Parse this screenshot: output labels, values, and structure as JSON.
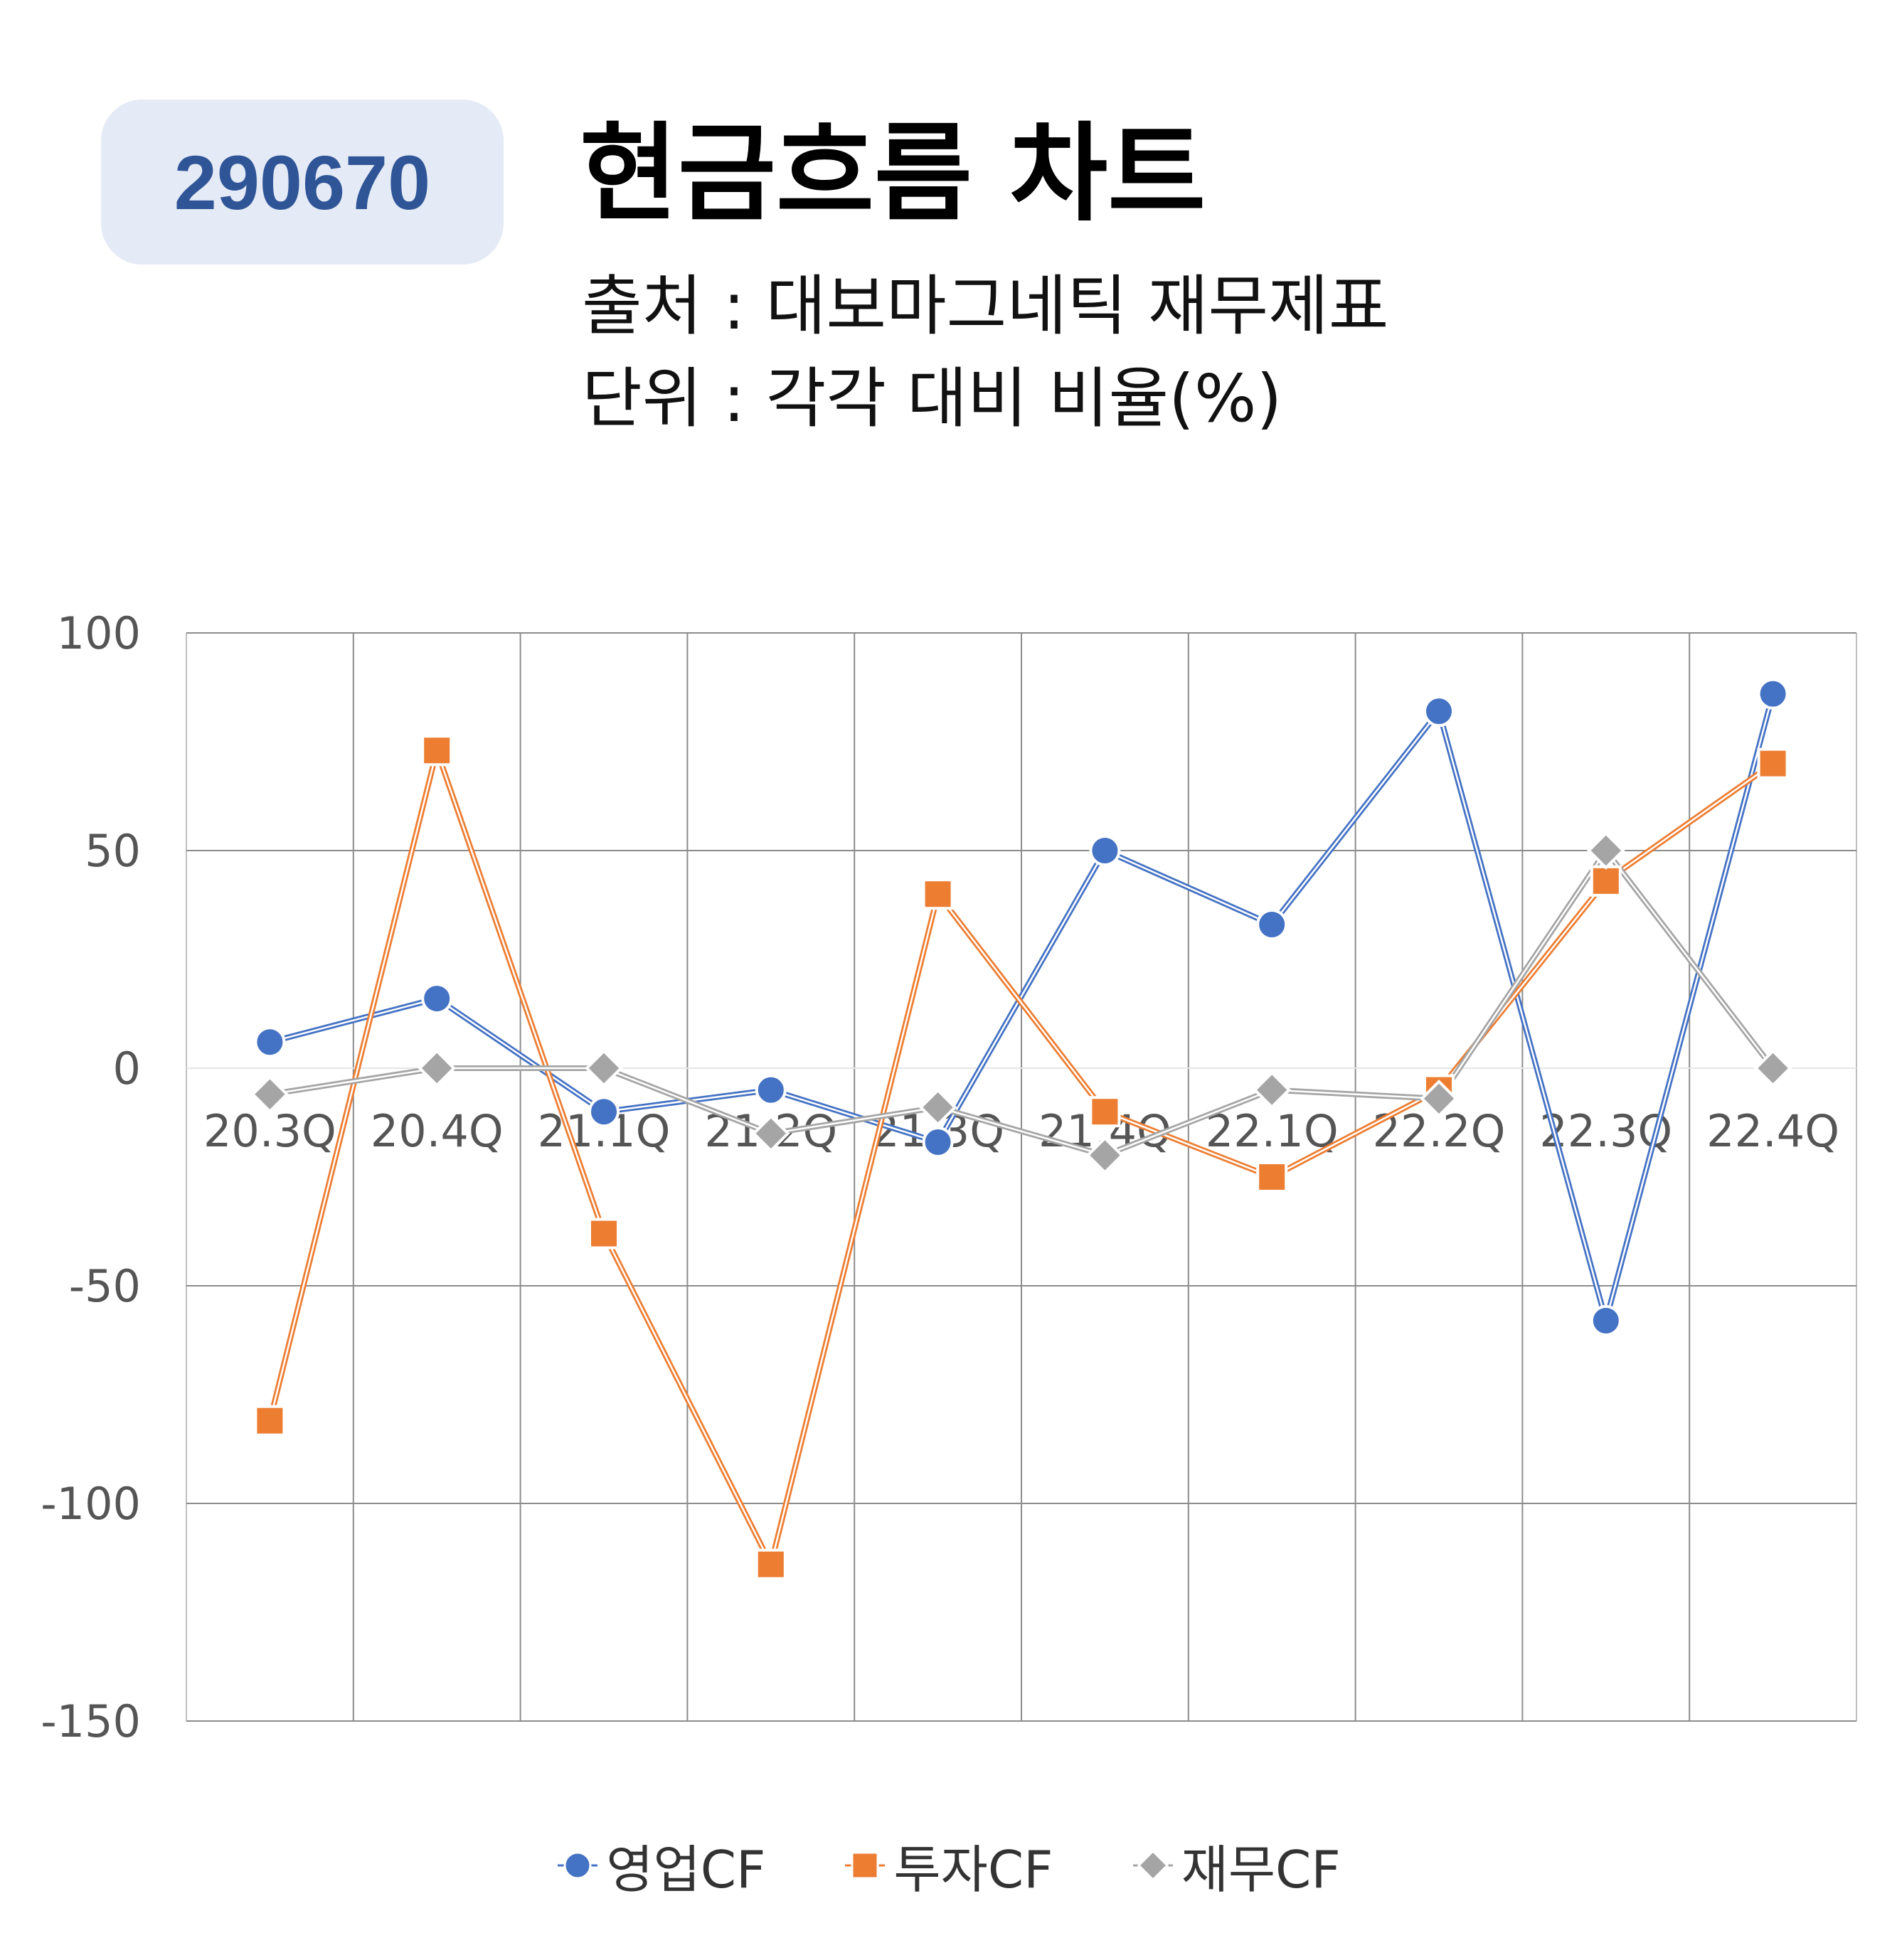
{
  "header": {
    "code": "290670",
    "title": "현금흐름 차트",
    "source_line": "출처 : 대보마그네틱 재무제표",
    "unit_line": "단위 : 각각 대비 비율(%)"
  },
  "colors": {
    "operating": "#4472c4",
    "investing": "#ed7d31",
    "financing": "#a5a5a5",
    "badge_bg": "#e4eaf6",
    "badge_text": "#2f5597"
  },
  "chart_data": {
    "type": "line",
    "categories": [
      "20.3Q",
      "20.4Q",
      "21.1Q",
      "21.2Q",
      "21.3Q",
      "21.4Q",
      "22.1Q",
      "22.2Q",
      "22.3Q",
      "22.4Q"
    ],
    "series": [
      {
        "name": "영업CF",
        "marker": "circle",
        "values": [
          6,
          16,
          -10,
          -5,
          -17,
          50,
          33,
          82,
          -58,
          86
        ]
      },
      {
        "name": "투자CF",
        "marker": "square",
        "values": [
          -81,
          73,
          -38,
          -114,
          40,
          -10,
          -25,
          -5,
          43,
          70
        ]
      },
      {
        "name": "재무CF",
        "marker": "diamond",
        "values": [
          -6,
          0,
          0,
          -15,
          -9,
          -20,
          -5,
          -7,
          50,
          0
        ]
      }
    ],
    "ylim": [
      -150,
      100
    ],
    "yticks": [
      "100",
      "50",
      "0",
      "-50",
      "-100",
      "-150"
    ],
    "grid": true,
    "legend": "bottom"
  }
}
